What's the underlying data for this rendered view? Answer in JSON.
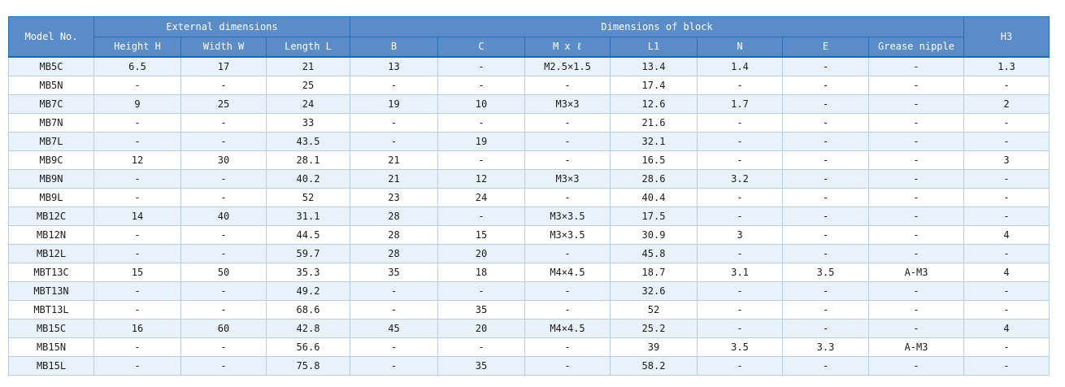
{
  "colors": {
    "header_bg": "#5a8cc9",
    "header_border": "#2470b3",
    "header_bottom_line": "#1c66ab",
    "row_stripe": "#e9f1fb",
    "body_border": "#b9cde3",
    "body_text": "#1c1c1c"
  },
  "table": {
    "header": {
      "model_no": "Model No.",
      "external_dimensions": "External dimensions",
      "dimensions_of_block": "Dimensions of block",
      "h3": "H3",
      "sub_columns": [
        "Height H",
        "Width W",
        "Length L",
        "B",
        "C",
        "M x ℓ",
        "L1",
        "N",
        "E",
        "Grease nipple"
      ]
    },
    "rows": [
      [
        "MB5C",
        "6.5",
        "17",
        "21",
        "13",
        "-",
        "M2.5×1.5",
        "13.4",
        "1.4",
        "-",
        "-",
        "1.3"
      ],
      [
        "MB5N",
        "-",
        "-",
        "25",
        "-",
        "-",
        "-",
        "17.4",
        "-",
        "-",
        "-",
        "-"
      ],
      [
        "MB7C",
        "9",
        "25",
        "24",
        "19",
        "10",
        "M3×3",
        "12.6",
        "1.7",
        "-",
        "-",
        "2"
      ],
      [
        "MB7N",
        "-",
        "-",
        "33",
        "-",
        "-",
        "-",
        "21.6",
        "-",
        "-",
        "-",
        "-"
      ],
      [
        "MB7L",
        "-",
        "-",
        "43.5",
        "-",
        "19",
        "-",
        "32.1",
        "-",
        "-",
        "-",
        "-"
      ],
      [
        "MB9C",
        "12",
        "30",
        "28.1",
        "21",
        "-",
        "-",
        "16.5",
        "-",
        "-",
        "-",
        "3"
      ],
      [
        "MB9N",
        "-",
        "-",
        "40.2",
        "21",
        "12",
        "M3×3",
        "28.6",
        "3.2",
        "-",
        "-",
        "-"
      ],
      [
        "MB9L",
        "-",
        "-",
        "52",
        "23",
        "24",
        "-",
        "40.4",
        "-",
        "-",
        "-",
        "-"
      ],
      [
        "MB12C",
        "14",
        "40",
        "31.1",
        "28",
        "-",
        "M3×3.5",
        "17.5",
        "-",
        "-",
        "-",
        "-"
      ],
      [
        "MB12N",
        "-",
        "-",
        "44.5",
        "28",
        "15",
        "M3×3.5",
        "30.9",
        "3",
        "-",
        "-",
        "4"
      ],
      [
        "MB12L",
        "-",
        "-",
        "59.7",
        "28",
        "20",
        "-",
        "45.8",
        "-",
        "-",
        "-",
        "-"
      ],
      [
        "MBT13C",
        "15",
        "50",
        "35.3",
        "35",
        "18",
        "M4×4.5",
        "18.7",
        "3.1",
        "3.5",
        "A-M3",
        "4"
      ],
      [
        "MBT13N",
        "-",
        "-",
        "49.2",
        "-",
        "-",
        "-",
        "32.6",
        "-",
        "-",
        "-",
        "-"
      ],
      [
        "MBT13L",
        "-",
        "-",
        "68.6",
        "-",
        "35",
        "-",
        "52",
        "-",
        "-",
        "-",
        "-"
      ],
      [
        "MB15C",
        "16",
        "60",
        "42.8",
        "45",
        "20",
        "M4×4.5",
        "25.2",
        "-",
        "-",
        "-",
        "4"
      ],
      [
        "MB15N",
        "-",
        "-",
        "56.6",
        "-",
        "-",
        "-",
        "39",
        "3.5",
        "3.3",
        "A-M3",
        "-"
      ],
      [
        "MB15L",
        "-",
        "-",
        "75.8",
        "-",
        "35",
        "-",
        "58.2",
        "-",
        "-",
        "-",
        "-"
      ]
    ]
  }
}
